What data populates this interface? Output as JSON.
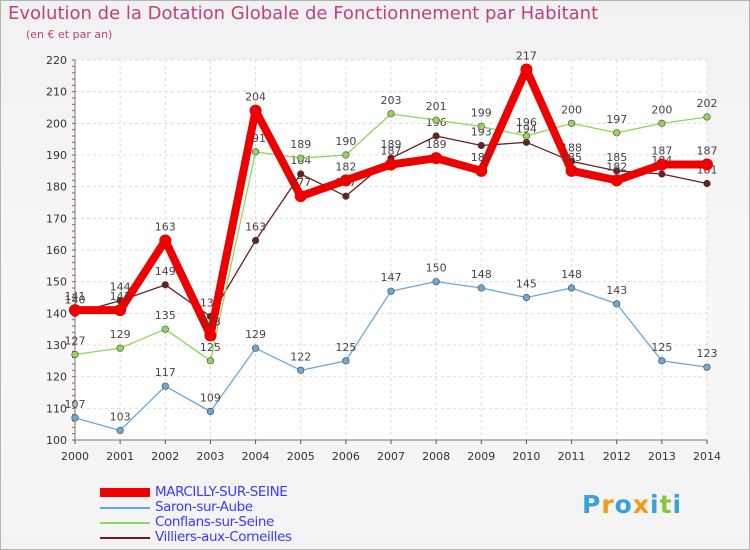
{
  "chart_data": {
    "type": "line",
    "title": "Evolution de la Dotation Globale de Fonctionnement par Habitant",
    "subtitle": "(en € et par an)",
    "xlabel": "",
    "ylabel": "",
    "x": [
      2000,
      2001,
      2002,
      2003,
      2004,
      2005,
      2006,
      2007,
      2008,
      2009,
      2010,
      2011,
      2012,
      2013,
      2014
    ],
    "ylim": [
      100,
      220
    ],
    "yticks": [
      100,
      110,
      120,
      130,
      140,
      150,
      160,
      170,
      180,
      190,
      200,
      210,
      220
    ],
    "grid": true,
    "legend_position": "bottom-left",
    "series": [
      {
        "name": "Villiers-aux-Corneilles",
        "color": "#6b1f1f",
        "values": [
          140,
          144,
          149,
          139,
          163,
          184,
          177,
          189,
          196,
          193,
          194,
          188,
          185,
          184,
          181
        ]
      },
      {
        "name": "Conflans-sur-Seine",
        "color": "#8fd65a",
        "values": [
          127,
          129,
          135,
          125,
          191,
          189,
          190,
          203,
          201,
          199,
          196,
          200,
          197,
          200,
          202
        ]
      },
      {
        "name": "Saron-sur-Aube",
        "color": "#6aa8d8",
        "values": [
          107,
          103,
          117,
          109,
          129,
          122,
          125,
          147,
          150,
          148,
          145,
          148,
          143,
          125,
          123
        ]
      },
      {
        "name": "MARCILLY-SUR-SEINE",
        "color": "#ee0000",
        "values": [
          141,
          141,
          163,
          133,
          204,
          177,
          182,
          187,
          189,
          185,
          217,
          185,
          182,
          187,
          187
        ]
      }
    ]
  },
  "legend": [
    {
      "label": "MARCILLY-SUR-SEINE",
      "color": "#ee0000",
      "text_color": "#3a3aff"
    },
    {
      "label": "Saron-sur-Aube",
      "color": "#6aa8d8",
      "text_color": "#3a3aff"
    },
    {
      "label": "Conflans-sur-Seine",
      "color": "#8fd65a",
      "text_color": "#3a3aff"
    },
    {
      "label": "Villiers-aux-Corneilles",
      "color": "#6b1f1f",
      "text_color": "#3a3aff"
    }
  ],
  "brand": {
    "text": "Proxiti",
    "letters": [
      "P",
      "r",
      "o",
      "x",
      "i",
      "t",
      "i"
    ],
    "colors": [
      "#3aa0dc",
      "#f39a1b",
      "#3aa0dc",
      "#f39a1b",
      "#3aa0dc",
      "#8cc63f",
      "#3aa0dc"
    ]
  }
}
